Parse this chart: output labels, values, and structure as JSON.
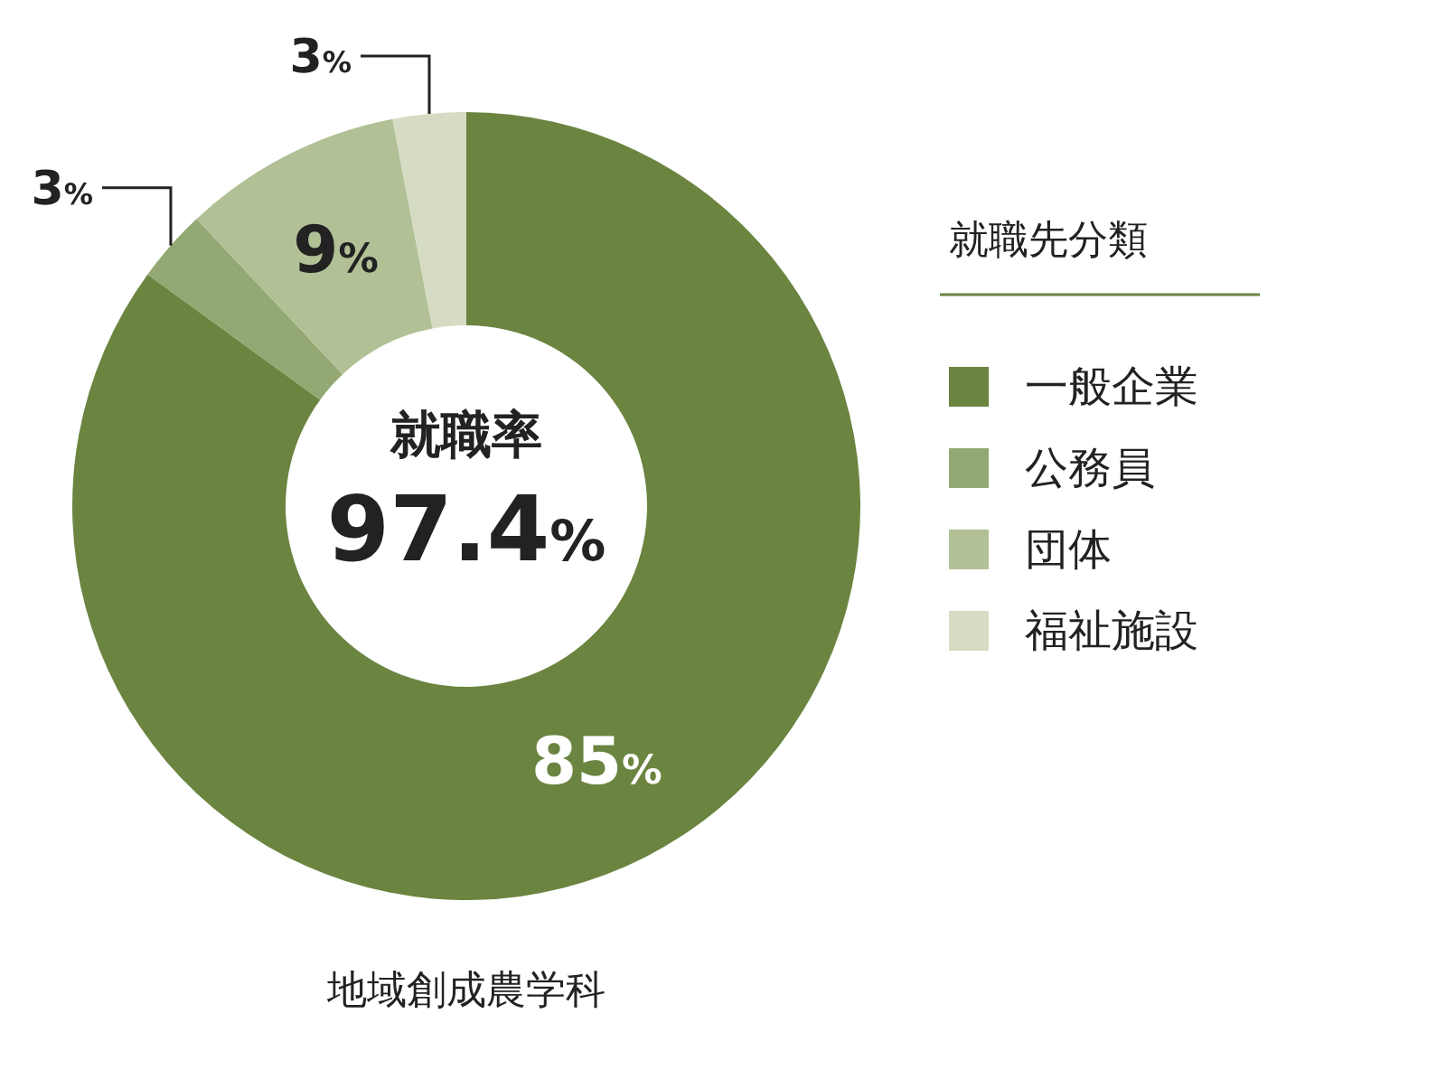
{
  "chart_data": {
    "type": "donut",
    "categories": [
      "一般企業",
      "公務員",
      "団体",
      "福祉施設"
    ],
    "values": [
      85,
      3,
      9,
      3
    ],
    "colors": [
      "#6b8440",
      "#93a872",
      "#b2c096",
      "#d5dcc3"
    ],
    "value_labels": [
      "85%",
      "3%",
      "9%",
      "3%"
    ],
    "legend": "right",
    "legend_title": "就職先分類",
    "annotations": [
      "就職率",
      "97.4%",
      "地域創成農学科"
    ]
  }
}
